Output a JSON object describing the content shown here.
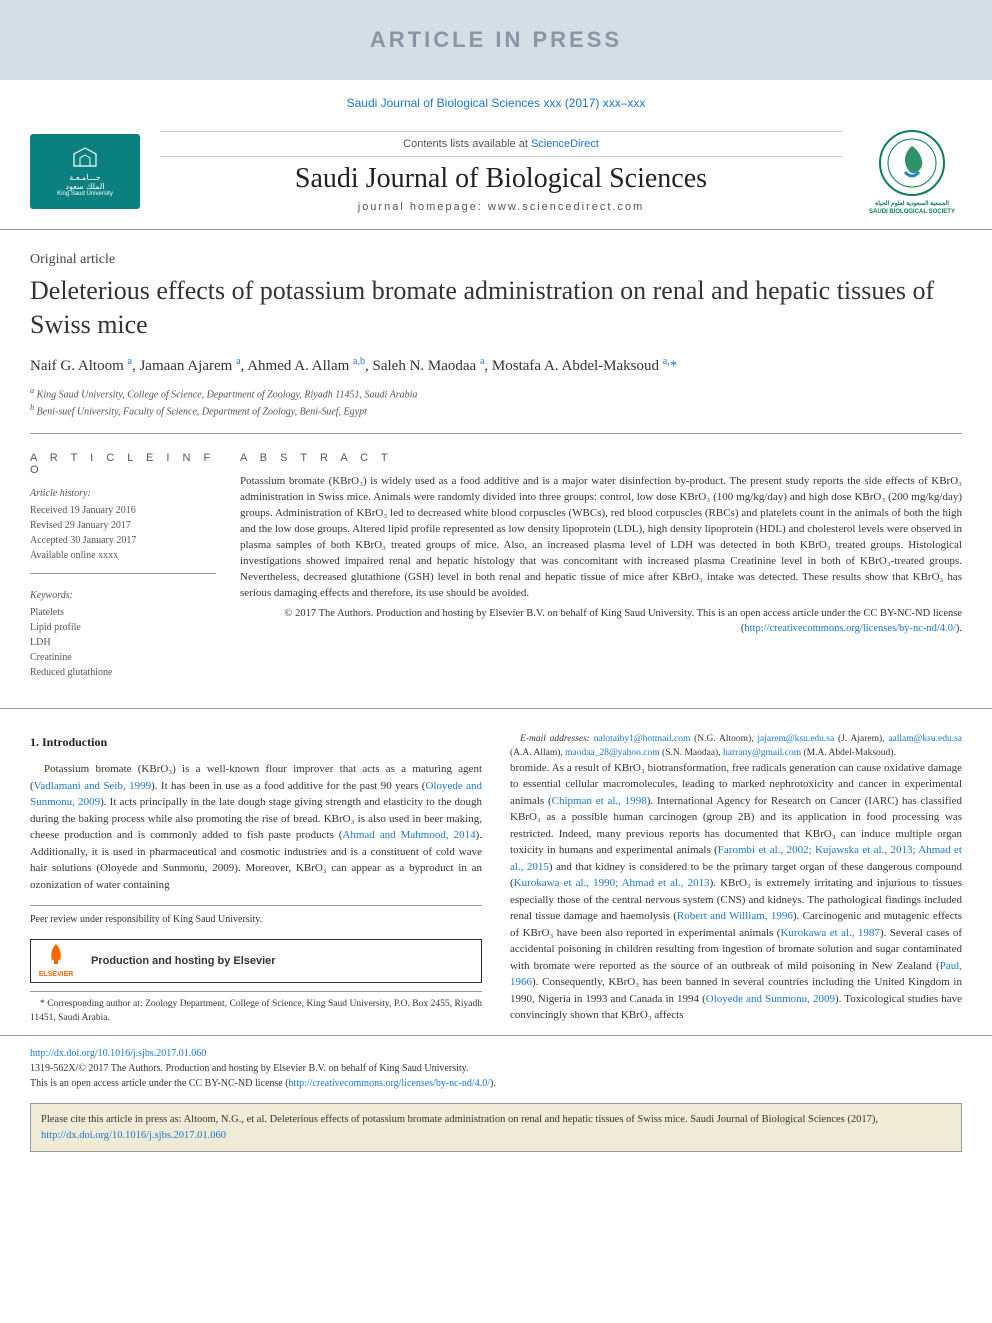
{
  "banner": {
    "text": "ARTICLE IN PRESS"
  },
  "journal_link_line": "Saudi Journal of Biological Sciences xxx (2017) xxx–xxx",
  "header": {
    "contents_prefix": "Contents lists available at ",
    "contents_link": "ScienceDirect",
    "journal_title": "Saudi Journal of Biological Sciences",
    "homepage_label": "journal homepage: www.sciencedirect.com",
    "logo_left_lines": [
      "جـــامـعـة",
      "الملك سعود",
      "King Saud University"
    ],
    "logo_right_top": "الجمعية السعودية لعلوم الحياة",
    "logo_right_bottom": "SAUDI BIOLOGICAL SOCIETY"
  },
  "article": {
    "type": "Original article",
    "title": "Deleterious effects of potassium bromate administration on renal and hepatic tissues of Swiss mice",
    "authors_html": "Naif G. Altoom <sup>a</sup>, Jamaan Ajarem <sup>a</sup>, Ahmed A. Allam <sup>a,b</sup>, Saleh N. Maodaa <sup>a</sup>, Mostafa A. Abdel-Maksoud <sup>a,</sup><span class='star'>*</span>",
    "affiliations": [
      "a King Saud University, College of Science, Department of Zoology, Riyadh 11451, Saudi Arabia",
      "b Beni-suef University, Faculty of Science, Department of Zoology, Beni-Suef, Egypt"
    ]
  },
  "info": {
    "heading": "A R T I C L E   I N F O",
    "history_label": "Article history:",
    "history": [
      "Received 19 January 2016",
      "Revised 29 January 2017",
      "Accepted 30 January 2017",
      "Available online xxxx"
    ],
    "keywords_label": "Keywords:",
    "keywords": [
      "Platelets",
      "Lipid profile",
      "LDH",
      "Creatinine",
      "Reduced glutathione"
    ]
  },
  "abstract": {
    "heading": "A B S T R A C T",
    "text": "Potassium bromate (KBrO₃) is widely used as a food additive and is a major water disinfection by-product. The present study reports the side effects of KBrO₃ administration in Swiss mice. Animals were randomly divided into three groups: control, low dose KBrO₃ (100 mg/kg/day) and high dose KBrO₃ (200 mg/kg/day) groups. Administration of KBrO₃ led to decreased white blood corpuscles (WBCs), red blood corpuscles (RBCs) and platelets count in the animals of both the high and the low dose groups. Altered lipid profile represented as low density lipoprotein (LDL), high density lipoprotein (HDL) and cholesterol levels were observed in plasma samples of both KBrO₃ treated groups of mice. Also, an increased plasma level of LDH was detected in both KBrO₃ treated groups. Histological investigations showed impaired renal and hepatic histology that was concomitant with increased plasma Creatinine level in both of KBrO₃-treated groups. Nevertheless, decreased glutathione (GSH) level in both renal and hepatic tissue of mice after KBrO₃ intake was detected. These results show that KBrO₃ has serious damaging effects and therefore, its use should be avoided.",
    "copyright": "© 2017 The Authors. Production and hosting by Elsevier B.V. on behalf of King Saud University. This is an open access article under the CC BY-NC-ND license (",
    "copyright_link": "http://creativecommons.org/licenses/by-nc-nd/4.0/",
    "copyright_close": ")."
  },
  "body": {
    "intro_heading": "1. Introduction",
    "col1_para": "Potassium bromate (KBrO₃) is a well-known flour improver that acts as a maturing agent (Vadlamani and Seib, 1999). It has been in use as a food additive for the past 90 years (Oloyede and Sunmonu, 2009). It acts principally in the late dough stage giving strength and elasticity to the dough during the baking process while also promoting the rise of bread. KBrO₃ is also used in beer making, cheese production and is commonly added to fish paste products (Ahmad and Mahmood, 2014). Additionally, it is used in pharmaceutical and cosmotic industries and is a constituent of cold wave hair solutions (Oloyede and Sunmonu, 2009). Moreover, KBrO₃ can appear as a byproduct in an ozonization of water containing",
    "peer_review": "Peer review under responsibility of King Saud University.",
    "hosting_label": "Production and hosting by Elsevier",
    "elsevier_label": "ELSEVIER",
    "corr_star": "* Corresponding author at: Zoology Department, College of Science, King Saud University, P.O. Box 2455, Riyadh 11451, Saudi Arabia.",
    "email_label": "E-mail addresses: ",
    "emails_html": "<a>nalotaiby1@hotmail.com</a> (N.G. Altoom), <a>jajarem@ksu.edu.sa</a> (J. Ajarem), <a>aallam@ksu.edu.sa</a> (A.A. Allam), <a>maodaa_28@yahoo.com</a> (S.N. Maodaa), <a>harrany@gmail.com</a> (M.A. Abdel-Maksoud).",
    "col2_para": "bromide. As a result of KBrO₃ biotransformation, free radicals generation can cause oxidative damage to essential cellular macromolecules, leading to marked nephrotoxicity and cancer in experimental animals (Chipman et al., 1998). International Agency for Research on Cancer (IARC) has classified KBrO₃ as a possible human carcinogen (group 2B) and its application in food processing was restricted. Indeed, many previous reports has documented that KBrO₃ can induce multiple organ toxicity in humans and experimental animals (Farombi et al., 2002; Kujawska et al., 2013; Ahmad et al., 2015) and that kidney is considered to be the primary target organ of these dangerous compound (Kurokawa et al., 1990; Ahmad et al., 2013). KBrO₃ is extremely irritating and injurious to tissues especially those of the central nervous system (CNS) and kidneys. The pathological findings included renal tissue damage and haemolysis (Robert and William, 1996). Carcinogenic and mutagenic effects of KBrO₃ have been also reported in experimental animals (Kurokawa et al., 1987). Several cases of accidental poisoning in children resulting from ingestion of bromate solution and sugar contaminated with bromate were reported as the source of an outbreak of mild poisoning in New Zealand (Paul, 1966). Consequently, KBrO₃ has been banned in several countries including the United Kingdom in 1990, Nigeria in 1993 and Canada in 1994 (Oloyede and Sunmonu, 2009). Toxicological studies have convincingly shown that KBrO₃ affects",
    "refs_col1": [
      "Vadlamani and Seib, 1999",
      "Oloyede and Sunmonu, 2009",
      "Ahmad and Mahmood, 2014",
      "Oloyede and Sunmonu, 2009"
    ],
    "refs_col2": [
      "Chipman et al., 1998",
      "Farombi et al., 2002; Kujawska et al., 2013; Ahmad et al., 2015",
      "Kurokawa et al., 1990; Ahmad et al., 2013",
      "Robert and William, 1996",
      "Kurokawa et al., 1987",
      "Paul, 1966",
      "Oloyede and Sunmonu, 2009"
    ]
  },
  "footer": {
    "doi": "http://dx.doi.org/10.1016/j.sjbs.2017.01.060",
    "issn_line": "1319-562X/© 2017 The Authors. Production and hosting by Elsevier B.V. on behalf of King Saud University.",
    "license_line": "This is an open access article under the CC BY-NC-ND license (",
    "license_link": "http://creativecommons.org/licenses/by-nc-nd/4.0/",
    "license_close": ")."
  },
  "citation_box": {
    "text": "Please cite this article in press as: Altoom, N.G., et al. Deleterious effects of potassium bromate administration on renal and hepatic tissues of Swiss mice. Saudi Journal of Biological Sciences (2017), ",
    "link": "http://dx.doi.org/10.1016/j.sjbs.2017.01.060"
  },
  "colors": {
    "banner_bg": "#d5dde5",
    "banner_text": "#8896a5",
    "link": "#1976d2",
    "teal": "#0a8080",
    "green": "#0a8050",
    "orange": "#ff6600",
    "citation_bg": "#f0ebd6"
  }
}
